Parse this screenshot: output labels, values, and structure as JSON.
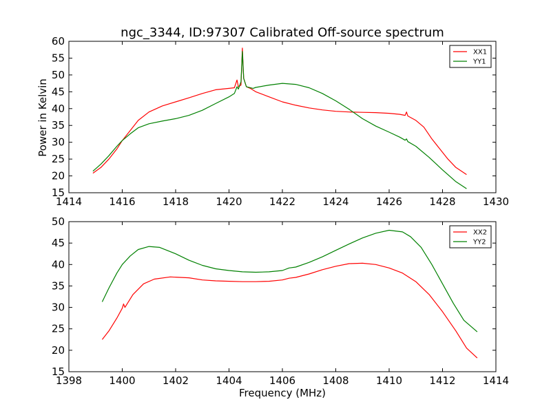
{
  "chart_data": [
    {
      "type": "line",
      "title": "ngc_3344, ID:97307 Calibrated Off-source spectrum",
      "xlabel": "",
      "ylabel": "Power in Kelvin",
      "xlim": [
        1414,
        1430
      ],
      "ylim": [
        15,
        60
      ],
      "xticks": [
        1414,
        1416,
        1418,
        1420,
        1422,
        1424,
        1426,
        1428,
        1430
      ],
      "yticks": [
        15,
        20,
        25,
        30,
        35,
        40,
        45,
        50,
        55,
        60
      ],
      "grid": false,
      "legend": "top-right",
      "series": [
        {
          "name": "XX1",
          "color": "#ff0000",
          "points": [
            [
              1414.9,
              20.8
            ],
            [
              1415.2,
              22.5
            ],
            [
              1415.5,
              25
            ],
            [
              1415.8,
              28
            ],
            [
              1416.0,
              30.5
            ],
            [
              1416.3,
              33.5
            ],
            [
              1416.6,
              36.5
            ],
            [
              1417.0,
              39
            ],
            [
              1417.5,
              40.8
            ],
            [
              1418.0,
              42
            ],
            [
              1418.5,
              43.2
            ],
            [
              1419.0,
              44.5
            ],
            [
              1419.5,
              45.6
            ],
            [
              1420.0,
              46
            ],
            [
              1420.2,
              46.2
            ],
            [
              1420.3,
              48.5
            ],
            [
              1420.35,
              46.5
            ],
            [
              1420.45,
              47
            ],
            [
              1420.5,
              58
            ],
            [
              1420.55,
              49
            ],
            [
              1420.65,
              46.5
            ],
            [
              1420.8,
              46
            ],
            [
              1421.0,
              45
            ],
            [
              1421.5,
              43.5
            ],
            [
              1422.0,
              42
            ],
            [
              1422.5,
              41
            ],
            [
              1423.0,
              40.2
            ],
            [
              1423.5,
              39.6
            ],
            [
              1424.0,
              39.2
            ],
            [
              1424.5,
              39
            ],
            [
              1425.0,
              38.9
            ],
            [
              1425.5,
              38.8
            ],
            [
              1426.0,
              38.6
            ],
            [
              1426.4,
              38.3
            ],
            [
              1426.6,
              38
            ],
            [
              1426.65,
              39
            ],
            [
              1426.7,
              37.8
            ],
            [
              1427.0,
              36.5
            ],
            [
              1427.3,
              34.5
            ],
            [
              1427.6,
              31
            ],
            [
              1427.9,
              28
            ],
            [
              1428.2,
              25
            ],
            [
              1428.5,
              22.5
            ],
            [
              1428.9,
              20.4
            ]
          ]
        },
        {
          "name": "YY1",
          "color": "#008000",
          "points": [
            [
              1414.9,
              21.4
            ],
            [
              1415.2,
              23.5
            ],
            [
              1415.5,
              26
            ],
            [
              1415.8,
              28.8
            ],
            [
              1416.0,
              30.5
            ],
            [
              1416.3,
              32.5
            ],
            [
              1416.6,
              34.3
            ],
            [
              1417.0,
              35.5
            ],
            [
              1417.5,
              36.3
            ],
            [
              1418.0,
              37
            ],
            [
              1418.5,
              38
            ],
            [
              1419.0,
              39.5
            ],
            [
              1419.5,
              41.5
            ],
            [
              1420.0,
              43.5
            ],
            [
              1420.2,
              44.5
            ],
            [
              1420.3,
              46.5
            ],
            [
              1420.35,
              45.8
            ],
            [
              1420.45,
              48
            ],
            [
              1420.5,
              57
            ],
            [
              1420.55,
              49
            ],
            [
              1420.65,
              46.5
            ],
            [
              1420.9,
              46
            ],
            [
              1421.0,
              46.3
            ],
            [
              1421.5,
              47
            ],
            [
              1422.0,
              47.5
            ],
            [
              1422.5,
              47.2
            ],
            [
              1423.0,
              46.2
            ],
            [
              1423.5,
              44.5
            ],
            [
              1424.0,
              42.3
            ],
            [
              1424.5,
              39.8
            ],
            [
              1425.0,
              37
            ],
            [
              1425.5,
              34.8
            ],
            [
              1426.0,
              33
            ],
            [
              1426.4,
              31.5
            ],
            [
              1426.6,
              30.6
            ],
            [
              1426.65,
              31
            ],
            [
              1426.7,
              30.2
            ],
            [
              1427.0,
              28.8
            ],
            [
              1427.5,
              25.5
            ],
            [
              1428.0,
              21.8
            ],
            [
              1428.5,
              18.3
            ],
            [
              1428.9,
              16.2
            ]
          ]
        }
      ]
    },
    {
      "type": "line",
      "title": "",
      "xlabel": "Frequency (MHz)",
      "ylabel": "",
      "xlim": [
        1398,
        1414
      ],
      "ylim": [
        15,
        50
      ],
      "xticks": [
        1398,
        1400,
        1402,
        1404,
        1406,
        1408,
        1410,
        1412,
        1414
      ],
      "yticks": [
        15,
        20,
        25,
        30,
        35,
        40,
        45,
        50
      ],
      "grid": false,
      "legend": "top-right",
      "series": [
        {
          "name": "XX2",
          "color": "#ff0000",
          "points": [
            [
              1399.25,
              22.5
            ],
            [
              1399.5,
              24.5
            ],
            [
              1399.8,
              27.5
            ],
            [
              1400.0,
              29.8
            ],
            [
              1400.05,
              30.8
            ],
            [
              1400.1,
              30
            ],
            [
              1400.4,
              33
            ],
            [
              1400.8,
              35.5
            ],
            [
              1401.2,
              36.6
            ],
            [
              1401.8,
              37.1
            ],
            [
              1402.5,
              36.9
            ],
            [
              1403.0,
              36.4
            ],
            [
              1403.5,
              36.2
            ],
            [
              1404.0,
              36.1
            ],
            [
              1404.5,
              36
            ],
            [
              1405.0,
              36
            ],
            [
              1405.5,
              36.1
            ],
            [
              1406.0,
              36.4
            ],
            [
              1406.25,
              36.8
            ],
            [
              1406.5,
              37
            ],
            [
              1407.0,
              37.8
            ],
            [
              1407.5,
              38.8
            ],
            [
              1408.0,
              39.6
            ],
            [
              1408.5,
              40.2
            ],
            [
              1409.0,
              40.3
            ],
            [
              1409.5,
              40
            ],
            [
              1410.0,
              39.2
            ],
            [
              1410.5,
              38
            ],
            [
              1411.0,
              36
            ],
            [
              1411.5,
              33
            ],
            [
              1412.0,
              29
            ],
            [
              1412.5,
              24.5
            ],
            [
              1412.9,
              20.5
            ],
            [
              1413.3,
              18.2
            ]
          ]
        },
        {
          "name": "YY2",
          "color": "#008000",
          "points": [
            [
              1399.25,
              31.3
            ],
            [
              1399.5,
              34.5
            ],
            [
              1399.8,
              38
            ],
            [
              1400.0,
              40
            ],
            [
              1400.3,
              42
            ],
            [
              1400.6,
              43.5
            ],
            [
              1401.0,
              44.2
            ],
            [
              1401.4,
              44
            ],
            [
              1402.0,
              42.5
            ],
            [
              1402.5,
              41
            ],
            [
              1403.0,
              39.8
            ],
            [
              1403.5,
              39
            ],
            [
              1404.0,
              38.6
            ],
            [
              1404.5,
              38.3
            ],
            [
              1405.0,
              38.2
            ],
            [
              1405.5,
              38.3
            ],
            [
              1406.0,
              38.6
            ],
            [
              1406.25,
              39.2
            ],
            [
              1406.5,
              39.4
            ],
            [
              1407.0,
              40.5
            ],
            [
              1407.5,
              41.8
            ],
            [
              1408.0,
              43.3
            ],
            [
              1408.5,
              44.8
            ],
            [
              1409.0,
              46.2
            ],
            [
              1409.5,
              47.3
            ],
            [
              1410.0,
              48
            ],
            [
              1410.5,
              47.6
            ],
            [
              1410.8,
              46.5
            ],
            [
              1411.2,
              44
            ],
            [
              1411.6,
              40
            ],
            [
              1412.0,
              35.5
            ],
            [
              1412.4,
              31
            ],
            [
              1412.8,
              27
            ],
            [
              1413.3,
              24.3
            ]
          ]
        }
      ]
    }
  ]
}
